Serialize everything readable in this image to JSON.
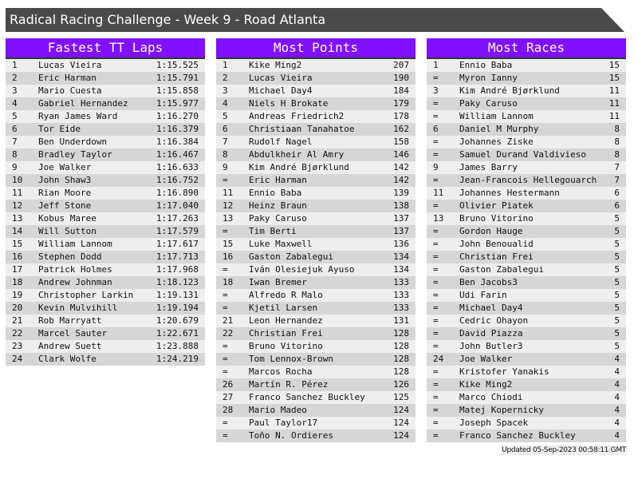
{
  "title": "Radical Racing Challenge - Week 9 - Road Atlanta",
  "footer": "Updated 05-Sep-2023 00:58:11 GMT",
  "colors": {
    "header": "#8010ff",
    "titlebar": "#4a4a4a",
    "row_light": "#eeeeee",
    "row_dark": "#d6d6d6"
  },
  "panels": [
    {
      "title": "Fastest TT Laps",
      "rows": [
        [
          "1",
          "Lucas Vieira",
          "1:15.525"
        ],
        [
          "2",
          "Eric Harman",
          "1:15.791"
        ],
        [
          "3",
          "Mario Cuesta",
          "1:15.858"
        ],
        [
          "4",
          "Gabriel Hernandez",
          "1:15.977"
        ],
        [
          "5",
          "Ryan James Ward",
          "1:16.270"
        ],
        [
          "6",
          "Tor Eide",
          "1:16.379"
        ],
        [
          "7",
          "Ben Underdown",
          "1:16.384"
        ],
        [
          "8",
          "Bradley Taylor",
          "1:16.467"
        ],
        [
          "9",
          "Joe Walker",
          "1:16.633"
        ],
        [
          "10",
          "John Shaw3",
          "1:16.752"
        ],
        [
          "11",
          "Rian Moore",
          "1:16.890"
        ],
        [
          "12",
          "Jeff Stone",
          "1:17.040"
        ],
        [
          "13",
          "Kobus Maree",
          "1:17.263"
        ],
        [
          "14",
          "Will Sutton",
          "1:17.579"
        ],
        [
          "15",
          "William Lannom",
          "1:17.617"
        ],
        [
          "16",
          "Stephen Dodd",
          "1:17.713"
        ],
        [
          "17",
          "Patrick Holmes",
          "1:17.968"
        ],
        [
          "18",
          "Andrew Johnman",
          "1:18.123"
        ],
        [
          "19",
          "Christopher Larkin",
          "1:19.131"
        ],
        [
          "20",
          "Kevin Mulvihill",
          "1:19.194"
        ],
        [
          "21",
          "Rob Marryatt",
          "1:20.679"
        ],
        [
          "22",
          "Marcel Sauter",
          "1:22.671"
        ],
        [
          "23",
          "Andrew Suett",
          "1:23.888"
        ],
        [
          "24",
          "Clark Wolfe",
          "1:24.219"
        ]
      ]
    },
    {
      "title": "Most Points",
      "rows": [
        [
          "1",
          "Kike Ming2",
          "207"
        ],
        [
          "2",
          "Lucas Vieira",
          "190"
        ],
        [
          "3",
          "Michael Day4",
          "184"
        ],
        [
          "4",
          "Niels H Brokate",
          "179"
        ],
        [
          "5",
          "Andreas Friedrich2",
          "178"
        ],
        [
          "6",
          "Christiaan Tanahatoe",
          "162"
        ],
        [
          "7",
          "Rudolf Nagel",
          "158"
        ],
        [
          "8",
          "Abdulkheir Al Amry",
          "146"
        ],
        [
          "9",
          "Kim André Bjørklund",
          "142"
        ],
        [
          "=",
          "Eric Harman",
          "142"
        ],
        [
          "11",
          "Ennio Baba",
          "139"
        ],
        [
          "12",
          "Heinz Braun",
          "138"
        ],
        [
          "13",
          "Paky Caruso",
          "137"
        ],
        [
          "=",
          "Tim Berti",
          "137"
        ],
        [
          "15",
          "Luke Maxwell",
          "136"
        ],
        [
          "16",
          "Gaston Zabalegui",
          "134"
        ],
        [
          "=",
          "Iván Olesiejuk Ayuso",
          "134"
        ],
        [
          "18",
          "Iwan Bremer",
          "133"
        ],
        [
          "=",
          "Alfredo R Malo",
          "133"
        ],
        [
          "=",
          "Kjetil Larsen",
          "133"
        ],
        [
          "21",
          "Leon Hernandez",
          "131"
        ],
        [
          "22",
          "Christian Frei",
          "128"
        ],
        [
          "=",
          "Bruno Vitorino",
          "128"
        ],
        [
          "=",
          "Tom Lennox-Brown",
          "128"
        ],
        [
          "=",
          "Marcos Rocha",
          "128"
        ],
        [
          "26",
          "Martín R. Pérez",
          "126"
        ],
        [
          "27",
          "Franco Sanchez Buckley",
          "125"
        ],
        [
          "28",
          "Mario Madeo",
          "124"
        ],
        [
          "=",
          "Paul Taylor17",
          "124"
        ],
        [
          "=",
          "Toño N. Ordieres",
          "124"
        ]
      ]
    },
    {
      "title": "Most Races",
      "rows": [
        [
          "1",
          "Ennio Baba",
          "15"
        ],
        [
          "=",
          "Myron Ianny",
          "15"
        ],
        [
          "3",
          "Kim André Bjørklund",
          "11"
        ],
        [
          "=",
          "Paky Caruso",
          "11"
        ],
        [
          "=",
          "William Lannom",
          "11"
        ],
        [
          "6",
          "Daniel M Murphy",
          "8"
        ],
        [
          "=",
          "Johannes Ziske",
          "8"
        ],
        [
          "=",
          "Samuel Durand Valdivieso",
          "8"
        ],
        [
          "9",
          "James Barry",
          "7"
        ],
        [
          "=",
          "Jean-Francois Hellegouarch",
          "7"
        ],
        [
          "11",
          "Johannes Hestermann",
          "6"
        ],
        [
          "=",
          "Olivier Piatek",
          "6"
        ],
        [
          "13",
          "Bruno Vitorino",
          "5"
        ],
        [
          "=",
          "Gordon Hauge",
          "5"
        ],
        [
          "=",
          "John Benoualid",
          "5"
        ],
        [
          "=",
          "Christian Frei",
          "5"
        ],
        [
          "=",
          "Gaston Zabalegui",
          "5"
        ],
        [
          "=",
          "Ben Jacobs3",
          "5"
        ],
        [
          "=",
          "Udi Farin",
          "5"
        ],
        [
          "=",
          "Michael Day4",
          "5"
        ],
        [
          "=",
          "Cedric Ohayon",
          "5"
        ],
        [
          "=",
          "David Piazza",
          "5"
        ],
        [
          "=",
          "John Butler3",
          "5"
        ],
        [
          "24",
          "Joe Walker",
          "4"
        ],
        [
          "=",
          "Kristofer Yanakis",
          "4"
        ],
        [
          "=",
          "Kike Ming2",
          "4"
        ],
        [
          "=",
          "Marco Chiodi",
          "4"
        ],
        [
          "=",
          "Matej Kopernicky",
          "4"
        ],
        [
          "=",
          "Joseph Spacek",
          "4"
        ],
        [
          "=",
          "Franco Sanchez Buckley",
          "4"
        ]
      ]
    }
  ]
}
